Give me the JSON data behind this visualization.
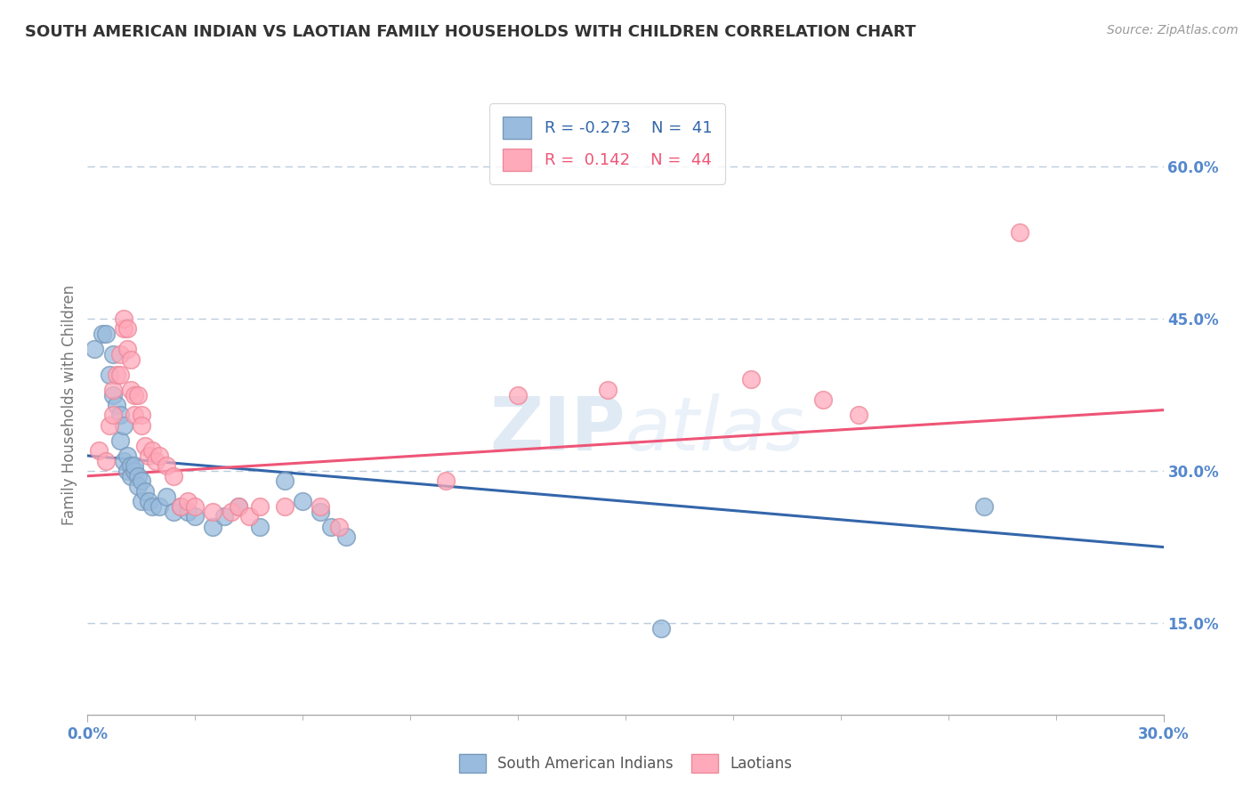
{
  "title": "SOUTH AMERICAN INDIAN VS LAOTIAN FAMILY HOUSEHOLDS WITH CHILDREN CORRELATION CHART",
  "source": "Source: ZipAtlas.com",
  "ylabel": "Family Households with Children",
  "right_yticks": [
    "15.0%",
    "30.0%",
    "45.0%",
    "60.0%"
  ],
  "right_ytick_vals": [
    0.15,
    0.3,
    0.45,
    0.6
  ],
  "xlim": [
    0.0,
    0.3
  ],
  "ylim": [
    0.06,
    0.67
  ],
  "legend_blue_r": "-0.273",
  "legend_blue_n": "41",
  "legend_pink_r": "0.142",
  "legend_pink_n": "44",
  "watermark_zip": "ZIP",
  "watermark_atlas": "atlas",
  "blue_scatter": [
    [
      0.002,
      0.42
    ],
    [
      0.004,
      0.435
    ],
    [
      0.005,
      0.435
    ],
    [
      0.006,
      0.395
    ],
    [
      0.007,
      0.415
    ],
    [
      0.007,
      0.375
    ],
    [
      0.008,
      0.365
    ],
    [
      0.009,
      0.355
    ],
    [
      0.009,
      0.33
    ],
    [
      0.01,
      0.345
    ],
    [
      0.01,
      0.31
    ],
    [
      0.011,
      0.315
    ],
    [
      0.011,
      0.3
    ],
    [
      0.012,
      0.305
    ],
    [
      0.012,
      0.295
    ],
    [
      0.013,
      0.3
    ],
    [
      0.013,
      0.305
    ],
    [
      0.014,
      0.295
    ],
    [
      0.014,
      0.285
    ],
    [
      0.015,
      0.29
    ],
    [
      0.015,
      0.27
    ],
    [
      0.016,
      0.28
    ],
    [
      0.017,
      0.27
    ],
    [
      0.018,
      0.265
    ],
    [
      0.02,
      0.265
    ],
    [
      0.022,
      0.275
    ],
    [
      0.024,
      0.26
    ],
    [
      0.026,
      0.265
    ],
    [
      0.028,
      0.26
    ],
    [
      0.03,
      0.255
    ],
    [
      0.035,
      0.245
    ],
    [
      0.038,
      0.255
    ],
    [
      0.042,
      0.265
    ],
    [
      0.048,
      0.245
    ],
    [
      0.055,
      0.29
    ],
    [
      0.06,
      0.27
    ],
    [
      0.065,
      0.26
    ],
    [
      0.068,
      0.245
    ],
    [
      0.072,
      0.235
    ],
    [
      0.16,
      0.145
    ],
    [
      0.25,
      0.265
    ]
  ],
  "pink_scatter": [
    [
      0.003,
      0.32
    ],
    [
      0.005,
      0.31
    ],
    [
      0.006,
      0.345
    ],
    [
      0.007,
      0.38
    ],
    [
      0.007,
      0.355
    ],
    [
      0.008,
      0.395
    ],
    [
      0.009,
      0.415
    ],
    [
      0.009,
      0.395
    ],
    [
      0.01,
      0.44
    ],
    [
      0.01,
      0.45
    ],
    [
      0.011,
      0.42
    ],
    [
      0.011,
      0.44
    ],
    [
      0.012,
      0.41
    ],
    [
      0.012,
      0.38
    ],
    [
      0.013,
      0.375
    ],
    [
      0.013,
      0.355
    ],
    [
      0.014,
      0.375
    ],
    [
      0.015,
      0.355
    ],
    [
      0.015,
      0.345
    ],
    [
      0.016,
      0.325
    ],
    [
      0.017,
      0.315
    ],
    [
      0.018,
      0.32
    ],
    [
      0.019,
      0.31
    ],
    [
      0.02,
      0.315
    ],
    [
      0.022,
      0.305
    ],
    [
      0.024,
      0.295
    ],
    [
      0.026,
      0.265
    ],
    [
      0.028,
      0.27
    ],
    [
      0.03,
      0.265
    ],
    [
      0.035,
      0.26
    ],
    [
      0.04,
      0.26
    ],
    [
      0.042,
      0.265
    ],
    [
      0.045,
      0.255
    ],
    [
      0.048,
      0.265
    ],
    [
      0.055,
      0.265
    ],
    [
      0.065,
      0.265
    ],
    [
      0.07,
      0.245
    ],
    [
      0.1,
      0.29
    ],
    [
      0.12,
      0.375
    ],
    [
      0.145,
      0.38
    ],
    [
      0.185,
      0.39
    ],
    [
      0.205,
      0.37
    ],
    [
      0.215,
      0.355
    ],
    [
      0.26,
      0.535
    ]
  ],
  "blue_line_x": [
    0.0,
    0.3
  ],
  "blue_line_y": [
    0.315,
    0.225
  ],
  "pink_line_x": [
    0.0,
    0.3
  ],
  "pink_line_y": [
    0.295,
    0.36
  ],
  "blue_color": "#99BBDD",
  "pink_color": "#FFAABB",
  "blue_scatter_edge": "#7799BB",
  "pink_scatter_edge": "#EE8899",
  "blue_line_color": "#3366AA",
  "pink_line_color": "#EE5577",
  "grid_color": "#BBCCDD",
  "bg_color": "#FFFFFF",
  "title_color": "#333333",
  "axis_tick_color": "#5588CC"
}
